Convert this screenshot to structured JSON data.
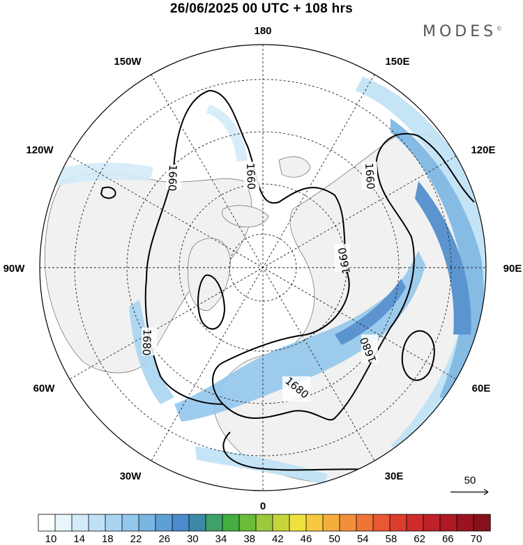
{
  "header": {
    "title": "26/06/2025  00 UTC  + 108 hrs",
    "brand": "MODES",
    "brand_mark": "©"
  },
  "map": {
    "projection": "north-polar-stereographic",
    "longitude_labels": [
      {
        "text": "180",
        "lon": 180
      },
      {
        "text": "150E",
        "lon": 150
      },
      {
        "text": "120E",
        "lon": 120
      },
      {
        "text": "90E",
        "lon": 90
      },
      {
        "text": "60E",
        "lon": 60
      },
      {
        "text": "30E",
        "lon": 30
      },
      {
        "text": "0",
        "lon": 0
      },
      {
        "text": "30W",
        "lon": -30
      },
      {
        "text": "60W",
        "lon": -60
      },
      {
        "text": "90W",
        "lon": -90
      },
      {
        "text": "120W",
        "lon": -120
      },
      {
        "text": "150W",
        "lon": -150
      }
    ],
    "contour_labels": [
      "1660",
      "1660",
      "1660",
      "1660",
      "1680",
      "1680",
      "1680"
    ],
    "reference_vector": {
      "value": "50"
    },
    "colors": {
      "land": "#f2f2f2",
      "ocean": "#ffffff",
      "jet_light": "#d6ecf8",
      "jet_mid": "#9ccbee",
      "jet_strong": "#4a8fd0",
      "contour": "#000000"
    }
  },
  "colorbar": {
    "labels": [
      "10",
      "14",
      "18",
      "22",
      "26",
      "30",
      "34",
      "38",
      "42",
      "46",
      "50",
      "54",
      "58",
      "62",
      "66",
      "70"
    ],
    "colors": [
      "#ffffff",
      "#e9f5fc",
      "#d3ebf8",
      "#bfe1f5",
      "#a9d5f1",
      "#93c7ec",
      "#7ab5e3",
      "#5f9fd8",
      "#4b8bcc",
      "#3d8aa8",
      "#3fa06a",
      "#44ad3e",
      "#6cbb3a",
      "#9bc93d",
      "#c6d63a",
      "#eee23f",
      "#f7c93f",
      "#f6ad3c",
      "#f2903a",
      "#ee7437",
      "#e85833",
      "#dd3d2f",
      "#cf2b2c",
      "#bf2128",
      "#ae1a24",
      "#9a1320",
      "#86101c"
    ]
  }
}
